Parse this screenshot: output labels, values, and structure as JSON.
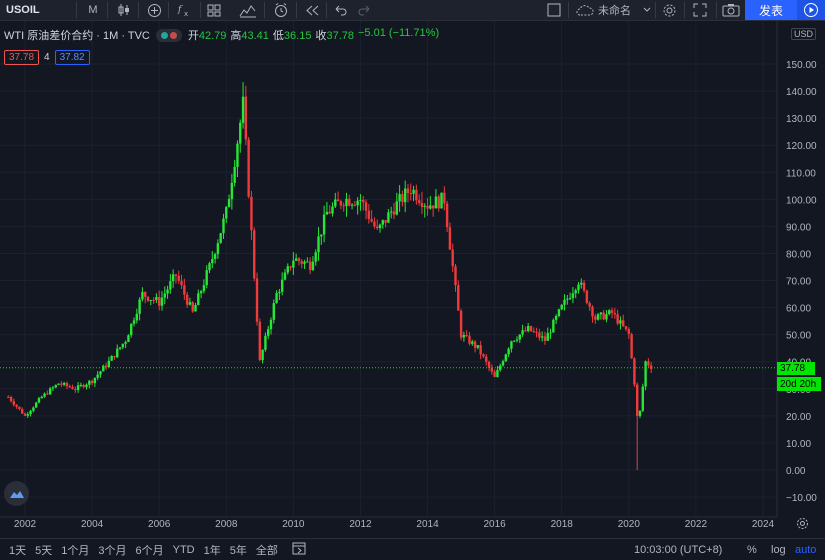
{
  "toolbar": {
    "symbol": "USOIL",
    "interval": "M",
    "layout_name": "未命名",
    "publish_label": "发表"
  },
  "legend": {
    "title": "WTI 原油差价合约 · 1M · TVC",
    "open_label": "开",
    "open": "42.79",
    "high_label": "高",
    "high": "43.41",
    "low_label": "低",
    "low": "36.15",
    "close_label": "收",
    "close": "37.78",
    "change": "−5.01 (−11.71%)"
  },
  "indicators": {
    "red_value": "37.78",
    "count": "4",
    "blue_value": "37.82"
  },
  "price_axis": {
    "currency": "USD",
    "ticks": [
      "150.00",
      "140.00",
      "130.00",
      "120.00",
      "110.00",
      "100.00",
      "90.00",
      "80.00",
      "70.00",
      "60.00",
      "50.00",
      "40.00",
      "30.00",
      "20.00",
      "10.00",
      "0.00",
      "−10.00"
    ],
    "last_price": "37.78",
    "countdown": "20d 20h"
  },
  "time_axis": {
    "ticks": [
      "2002",
      "2004",
      "2006",
      "2008",
      "2010",
      "2012",
      "2014",
      "2016",
      "2018",
      "2020",
      "2022",
      "2024"
    ]
  },
  "bottom_bar": {
    "ranges": [
      "1天",
      "5天",
      "1个月",
      "3个月",
      "6个月",
      "YTD",
      "1年",
      "5年",
      "全部"
    ],
    "clock": "10:03:00 (UTC+8)",
    "percent": "%",
    "log": "log",
    "auto": "auto"
  },
  "colors": {
    "up": "#26e636",
    "down": "#ef3b3b",
    "background": "#131722",
    "accent": "#2962ff"
  },
  "chart_data": {
    "type": "candlestick",
    "symbol": "USOIL",
    "interval": "1M",
    "ylim": [
      -15,
      160
    ],
    "xlim": [
      2001.5,
      2024.3
    ],
    "x": [
      2001.5,
      2002.0,
      2002.5,
      2003.0,
      2003.5,
      2004.0,
      2004.5,
      2005.0,
      2005.5,
      2006.0,
      2006.5,
      2007.0,
      2007.5,
      2008.0,
      2008.5,
      2009.0,
      2009.5,
      2010.0,
      2010.5,
      2011.0,
      2011.5,
      2012.0,
      2012.5,
      2013.0,
      2013.5,
      2014.0,
      2014.5,
      2015.0,
      2015.5,
      2016.0,
      2016.5,
      2017.0,
      2017.5,
      2018.0,
      2018.5,
      2019.0,
      2019.5,
      2020.0,
      2020.3,
      2020.5,
      2020.7
    ],
    "close": [
      27,
      20,
      27,
      32,
      30,
      33,
      40,
      48,
      65,
      62,
      72,
      58,
      75,
      95,
      135,
      40,
      65,
      78,
      76,
      95,
      100,
      100,
      88,
      97,
      104,
      98,
      100,
      50,
      45,
      34,
      48,
      52,
      48,
      60,
      70,
      56,
      58,
      50,
      18,
      40,
      37.78
    ]
  }
}
